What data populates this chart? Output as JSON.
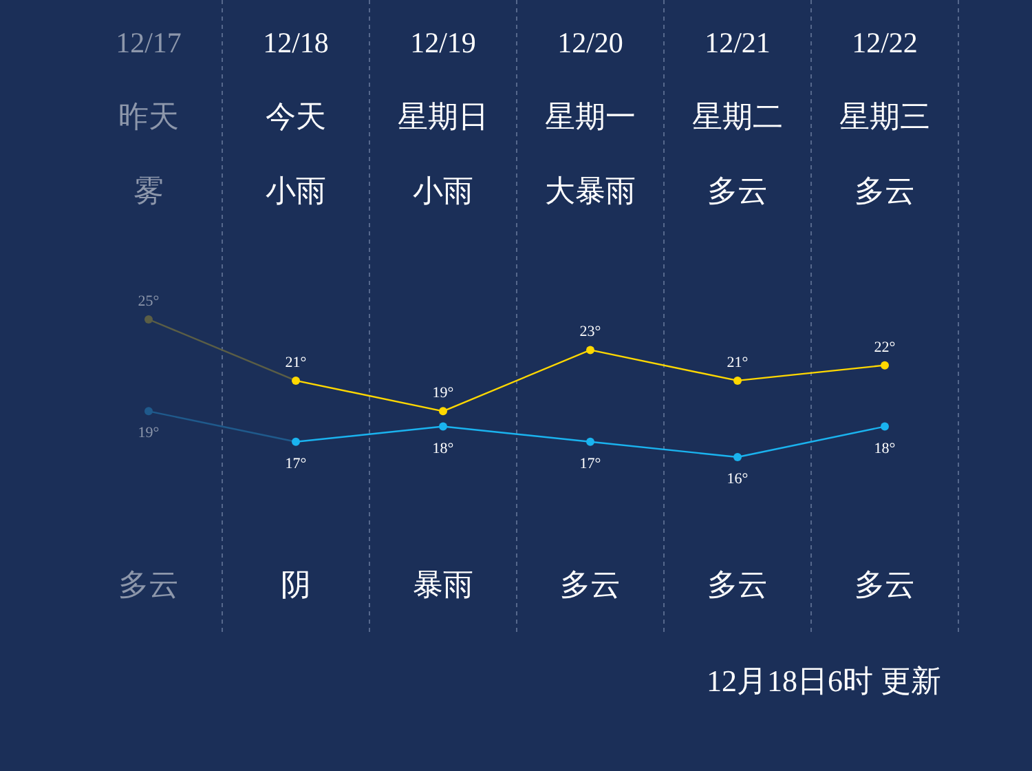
{
  "chart_data": {
    "type": "line",
    "categories": [
      "12/17",
      "12/18",
      "12/19",
      "12/20",
      "12/21",
      "12/22"
    ],
    "series": [
      {
        "color": "#ffd800",
        "colors": [
          "#5b5e45",
          "#ffd800",
          "#ffd800",
          "#ffd800",
          "#ffd800",
          "#ffd800"
        ],
        "values": [
          25,
          21,
          19,
          23,
          21,
          22
        ],
        "value_labels": [
          "25°",
          "21°",
          "19°",
          "23°",
          "21°",
          "22°"
        ]
      },
      {
        "color": "#1ab3ef",
        "colors": [
          "#1f5a8c",
          "#1ab3ef",
          "#1ab3ef",
          "#1ab3ef",
          "#1ab3ef",
          "#1ab3ef"
        ],
        "values": [
          19,
          17,
          18,
          17,
          16,
          18
        ],
        "value_labels": [
          "19°",
          "17°",
          "18°",
          "17°",
          "16°",
          "18°"
        ]
      }
    ],
    "marker": "circle",
    "line_style": "solid",
    "grid": "x",
    "annotations": [
      "昨天",
      "今天",
      "星期日",
      "星期一",
      "星期二",
      "星期三",
      "雾",
      "小雨",
      "小雨",
      "大暴雨",
      "多云",
      "多云",
      "多云",
      "阴",
      "暴雨",
      "多云",
      "多云",
      "多云",
      "12月18日6时 更新"
    ]
  }
}
